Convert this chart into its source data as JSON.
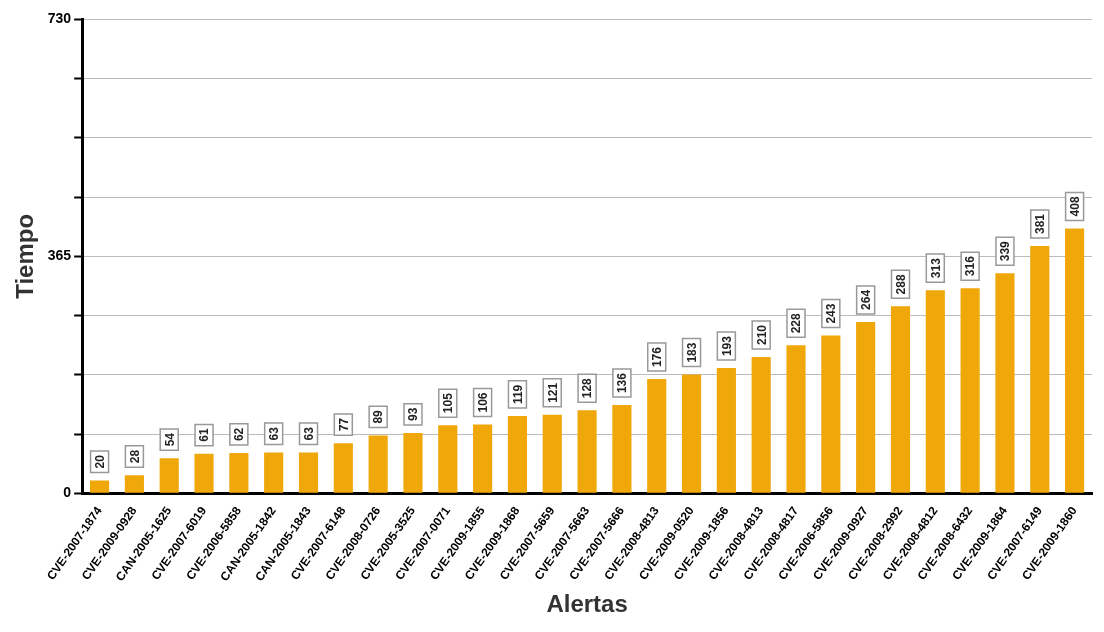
{
  "chart_data": {
    "type": "bar",
    "xlabel": "Alertas",
    "ylabel": "Tiempo",
    "categories": [
      "CVE-2007-1874",
      "CVE-2009-0928",
      "CAN-2005-1625",
      "CVE-2007-6019",
      "CVE-2006-5858",
      "CAN-2005-1842",
      "CAN-2005-1843",
      "CVE-2007-6148",
      "CVE-2008-0726",
      "CVE-2005-3525",
      "CVE-2007-0071",
      "CVE-2009-1855",
      "CVE-2009-1868",
      "CVE-2007-5659",
      "CVE-2007-5663",
      "CVE-2007-5666",
      "CVE-2008-4813",
      "CVE-2009-0520",
      "CVE-2009-1856",
      "CVE-2008-4813",
      "CVE-2008-4817",
      "CVE-2006-5856",
      "CVE-2009-0927",
      "CVE-2008-2992",
      "CVE-2008-4812",
      "CVE-2008-6432",
      "CVE-2009-1864",
      "CVE-2007-6149",
      "CVE-2009-1860"
    ],
    "values": [
      20,
      28,
      54,
      61,
      62,
      63,
      63,
      77,
      89,
      93,
      105,
      106,
      119,
      121,
      128,
      136,
      176,
      183,
      193,
      210,
      228,
      243,
      264,
      288,
      313,
      316,
      339,
      381,
      408
    ],
    "color": "#f0a70a",
    "ylim": [
      0,
      730
    ],
    "yticks": [
      0,
      {
        "value": 91.25,
        "label": null
      },
      {
        "value": 182.5,
        "label": null
      },
      {
        "value": 273.75,
        "label": null
      },
      365,
      {
        "value": 456.25,
        "label": null
      },
      {
        "value": 547.5,
        "label": null
      },
      {
        "value": 638.75,
        "label": null
      },
      730
    ],
    "grid": "y",
    "data_labels": true
  }
}
